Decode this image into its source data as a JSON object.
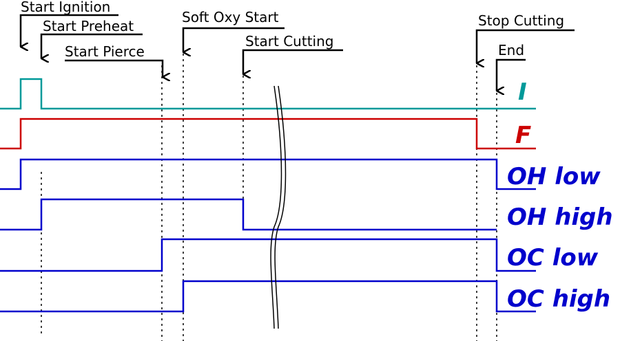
{
  "events": [
    {
      "label": "Start Ignition"
    },
    {
      "label": "Start Preheat"
    },
    {
      "label": "Start Pierce"
    },
    {
      "label": "Soft Oxy Start"
    },
    {
      "label": "Start Cutting"
    },
    {
      "label": "Stop Cutting"
    },
    {
      "label": "End"
    }
  ],
  "signals": [
    {
      "name": "I",
      "color": "#009999"
    },
    {
      "name": "F",
      "color": "#cc0000"
    },
    {
      "name": "OH low",
      "color": "#0000cc"
    },
    {
      "name": "OH high",
      "color": "#0000cc"
    },
    {
      "name": "OC low",
      "color": "#0000cc"
    },
    {
      "name": "OC high",
      "color": "#0000cc"
    }
  ]
}
